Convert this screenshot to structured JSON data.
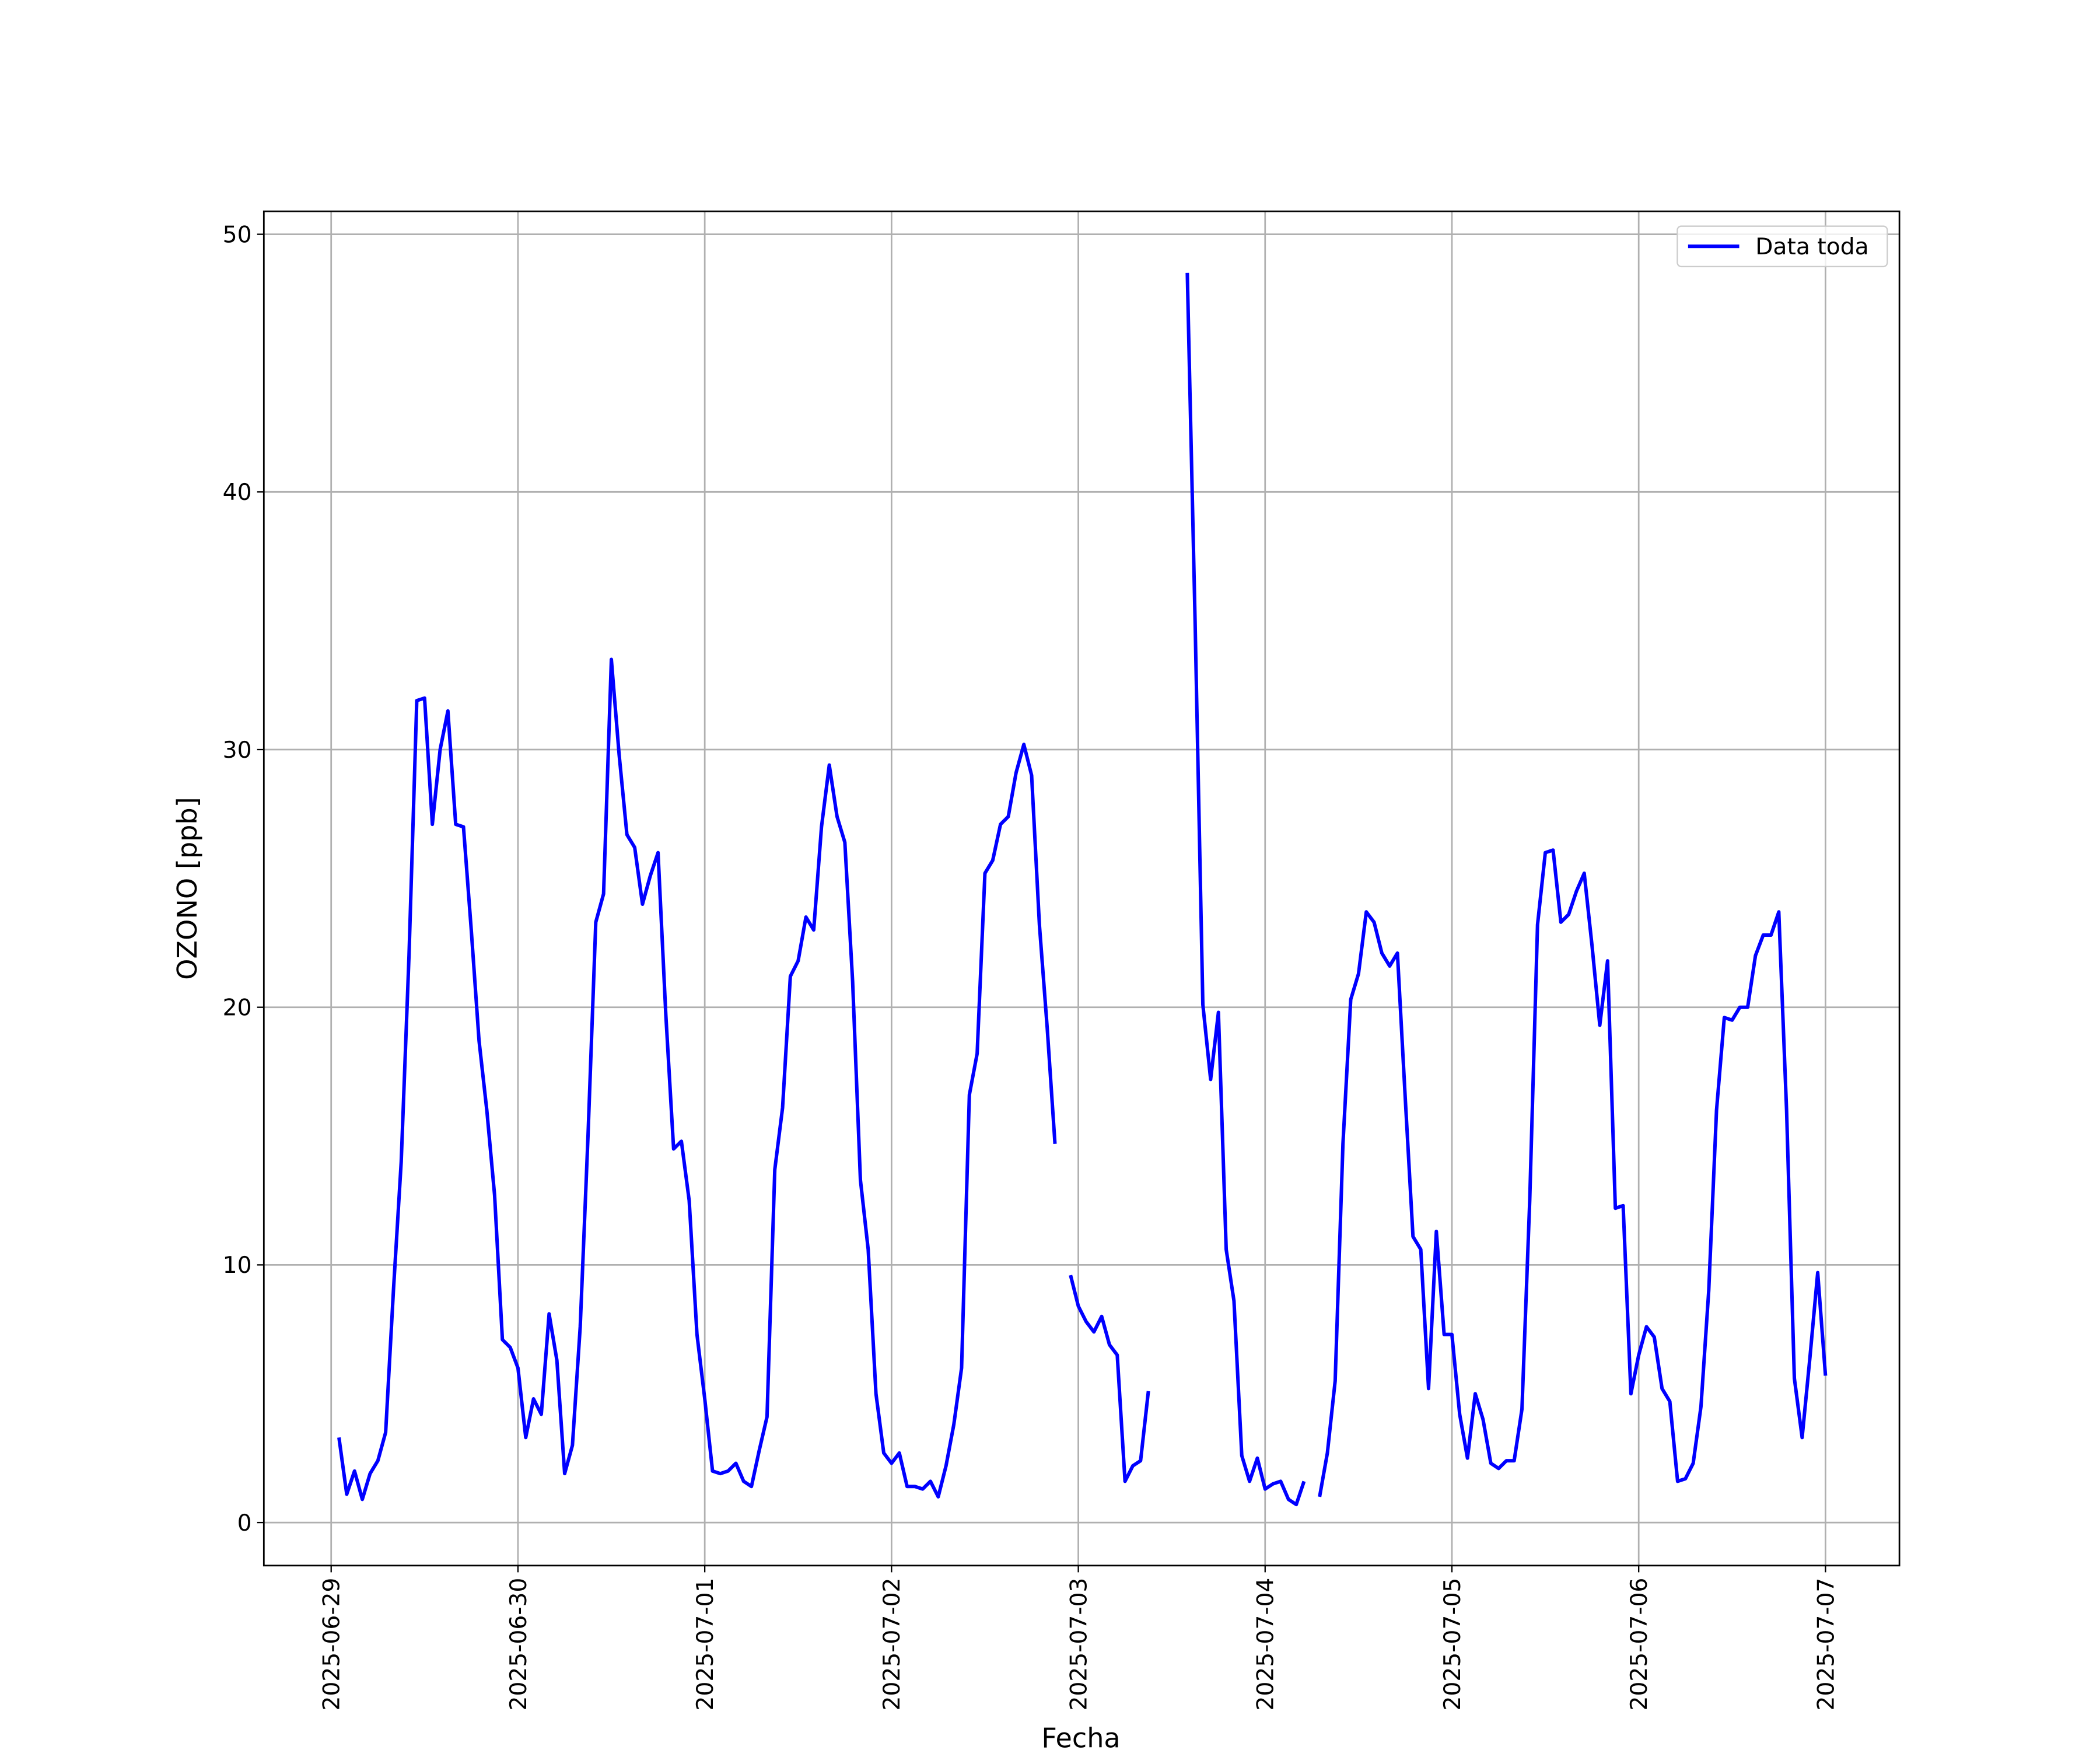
{
  "chart_data": {
    "type": "line",
    "xlabel": "Fecha",
    "ylabel": "OZONO [ppb]",
    "x": [
      "2025-06-29T01:00",
      "2025-06-29T02:00",
      "2025-06-29T03:00",
      "2025-06-29T04:00",
      "2025-06-29T05:00",
      "2025-06-29T06:00",
      "2025-06-29T07:00",
      "2025-06-29T08:00",
      "2025-06-29T09:00",
      "2025-06-29T10:00",
      "2025-06-29T11:00",
      "2025-06-29T12:00",
      "2025-06-29T13:00",
      "2025-06-29T14:00",
      "2025-06-29T15:00",
      "2025-06-29T16:00",
      "2025-06-29T17:00",
      "2025-06-29T18:00",
      "2025-06-29T19:00",
      "2025-06-29T20:00",
      "2025-06-29T21:00",
      "2025-06-29T22:00",
      "2025-06-29T23:00",
      "2025-06-30T00:00",
      "2025-06-30T01:00",
      "2025-06-30T02:00",
      "2025-06-30T03:00",
      "2025-06-30T04:00",
      "2025-06-30T05:00",
      "2025-06-30T06:00",
      "2025-06-30T07:00",
      "2025-06-30T08:00",
      "2025-06-30T09:00",
      "2025-06-30T10:00",
      "2025-06-30T11:00",
      "2025-06-30T12:00",
      "2025-06-30T13:00",
      "2025-06-30T14:00",
      "2025-06-30T15:00",
      "2025-06-30T16:00",
      "2025-06-30T17:00",
      "2025-06-30T18:00",
      "2025-06-30T19:00",
      "2025-06-30T20:00",
      "2025-06-30T21:00",
      "2025-06-30T22:00",
      "2025-06-30T23:00",
      "2025-07-01T00:00",
      "2025-07-01T01:00",
      "2025-07-01T02:00",
      "2025-07-01T03:00",
      "2025-07-01T04:00",
      "2025-07-01T05:00",
      "2025-07-01T06:00",
      "2025-07-01T07:00",
      "2025-07-01T08:00",
      "2025-07-01T09:00",
      "2025-07-01T10:00",
      "2025-07-01T11:00",
      "2025-07-01T12:00",
      "2025-07-01T13:00",
      "2025-07-01T14:00",
      "2025-07-01T15:00",
      "2025-07-01T16:00",
      "2025-07-01T17:00",
      "2025-07-01T18:00",
      "2025-07-01T19:00",
      "2025-07-01T20:00",
      "2025-07-01T21:00",
      "2025-07-01T22:00",
      "2025-07-01T23:00",
      "2025-07-02T00:00",
      "2025-07-02T01:00",
      "2025-07-02T02:00",
      "2025-07-02T03:00",
      "2025-07-02T04:00",
      "2025-07-02T05:00",
      "2025-07-02T06:00",
      "2025-07-02T07:00",
      "2025-07-02T08:00",
      "2025-07-02T09:00",
      "2025-07-02T10:00",
      "2025-07-02T11:00",
      "2025-07-02T12:00",
      "2025-07-02T13:00",
      "2025-07-02T14:00",
      "2025-07-02T15:00",
      "2025-07-02T16:00",
      "2025-07-02T17:00",
      "2025-07-02T18:00",
      "2025-07-02T19:00",
      "2025-07-02T20:00",
      "2025-07-02T21:00",
      "2025-07-02T22:00",
      "2025-07-02T23:00",
      "2025-07-03T00:00",
      "2025-07-03T01:00",
      "2025-07-03T02:00",
      "2025-07-03T03:00",
      "2025-07-03T04:00",
      "2025-07-03T05:00",
      "2025-07-03T06:00",
      "2025-07-03T07:00",
      "2025-07-03T08:00",
      "2025-07-03T09:00",
      "2025-07-03T10:00",
      "2025-07-03T11:00",
      "2025-07-03T12:00",
      "2025-07-03T13:00",
      "2025-07-03T14:00",
      "2025-07-03T15:00",
      "2025-07-03T16:00",
      "2025-07-03T17:00",
      "2025-07-03T18:00",
      "2025-07-03T19:00",
      "2025-07-03T20:00",
      "2025-07-03T21:00",
      "2025-07-03T22:00",
      "2025-07-03T23:00",
      "2025-07-04T00:00",
      "2025-07-04T01:00",
      "2025-07-04T02:00",
      "2025-07-04T03:00",
      "2025-07-04T04:00",
      "2025-07-04T05:00",
      "2025-07-04T06:00",
      "2025-07-04T07:00",
      "2025-07-04T08:00",
      "2025-07-04T09:00",
      "2025-07-04T10:00",
      "2025-07-04T11:00",
      "2025-07-04T12:00",
      "2025-07-04T13:00",
      "2025-07-04T14:00",
      "2025-07-04T15:00",
      "2025-07-04T16:00",
      "2025-07-04T17:00",
      "2025-07-04T18:00",
      "2025-07-04T19:00",
      "2025-07-04T20:00",
      "2025-07-04T21:00",
      "2025-07-04T22:00",
      "2025-07-04T23:00",
      "2025-07-05T00:00",
      "2025-07-05T01:00",
      "2025-07-05T02:00",
      "2025-07-05T03:00",
      "2025-07-05T04:00",
      "2025-07-05T05:00",
      "2025-07-05T06:00",
      "2025-07-05T07:00",
      "2025-07-05T08:00",
      "2025-07-05T09:00",
      "2025-07-05T10:00",
      "2025-07-05T11:00",
      "2025-07-05T12:00",
      "2025-07-05T13:00",
      "2025-07-05T14:00",
      "2025-07-05T15:00",
      "2025-07-05T16:00",
      "2025-07-05T17:00",
      "2025-07-05T18:00",
      "2025-07-05T19:00",
      "2025-07-05T20:00",
      "2025-07-05T21:00",
      "2025-07-05T22:00",
      "2025-07-05T23:00",
      "2025-07-06T00:00",
      "2025-07-06T01:00",
      "2025-07-06T02:00",
      "2025-07-06T03:00",
      "2025-07-06T04:00",
      "2025-07-06T05:00",
      "2025-07-06T06:00",
      "2025-07-06T07:00",
      "2025-07-06T08:00",
      "2025-07-06T09:00",
      "2025-07-06T10:00",
      "2025-07-06T11:00",
      "2025-07-06T12:00",
      "2025-07-06T13:00",
      "2025-07-06T14:00",
      "2025-07-06T15:00",
      "2025-07-06T16:00",
      "2025-07-06T17:00",
      "2025-07-06T18:00",
      "2025-07-06T19:00",
      "2025-07-06T20:00",
      "2025-07-06T21:00",
      "2025-07-06T22:00",
      "2025-07-06T23:00",
      "2025-07-07T00:00"
    ],
    "series": [
      {
        "name": "Data toda",
        "color": "#0000ff",
        "values": [
          3.3,
          1.1,
          2.0,
          0.9,
          1.9,
          2.4,
          3.5,
          9,
          14,
          22,
          31.9,
          32.0,
          27.1,
          30.0,
          31.5,
          27.1,
          27.0,
          23,
          18.7,
          16,
          12.7,
          7.1,
          6.8,
          6.0,
          3.3,
          4.8,
          4.2,
          8.1,
          6.3,
          1.9,
          3.0,
          7.6,
          15,
          23.3,
          24.4,
          33.5,
          29.8,
          26.7,
          26.2,
          24.0,
          25.1,
          26.0,
          19.7,
          14.5,
          14.8,
          12.5,
          7.3,
          4.8,
          2.0,
          1.9,
          2.0,
          2.3,
          1.6,
          1.4,
          2.8,
          4.1,
          13.7,
          16.1,
          21.2,
          21.8,
          23.5,
          23.0,
          27.0,
          29.4,
          27.4,
          26.4,
          21,
          13.3,
          10.6,
          5.0,
          2.7,
          2.3,
          2.7,
          1.4,
          1.4,
          1.3,
          1.6,
          1.0,
          2.2,
          3.8,
          6.0,
          16.6,
          18.2,
          25.2,
          25.7,
          27.1,
          27.4,
          29.1,
          30.2,
          29.0,
          23.2,
          19.2,
          14.7,
          null,
          9.6,
          8.4,
          7.8,
          7.4,
          8.0,
          6.9,
          6.5,
          1.6,
          2.2,
          2.4,
          5.1,
          null,
          null,
          null,
          null,
          48.5,
          35,
          20.1,
          17.2,
          19.8,
          10.6,
          8.6,
          2.6,
          1.6,
          2.5,
          1.3,
          1.5,
          1.6,
          0.9,
          0.7,
          1.6,
          null,
          1.0,
          2.7,
          5.5,
          14.7,
          20.3,
          21.3,
          23.7,
          23.3,
          22.1,
          21.6,
          22.1,
          16.5,
          11.1,
          10.6,
          5.2,
          11.3,
          7.3,
          7.3,
          4.2,
          2.5,
          5.0,
          4.0,
          2.3,
          2.1,
          2.4,
          2.4,
          4.4,
          12.5,
          23.2,
          26.0,
          26.1,
          23.3,
          23.6,
          24.5,
          25.2,
          22.4,
          19.3,
          21.8,
          12.2,
          12.3,
          5.0,
          6.5,
          7.6,
          7.2,
          5.2,
          4.7,
          1.6,
          1.7,
          2.3,
          4.5,
          9,
          16,
          19.6,
          19.5,
          20.0,
          20.0,
          22.0,
          22.8,
          22.8,
          23.7,
          16,
          5.6,
          3.3,
          6.4,
          9.7,
          5.7
        ]
      }
    ],
    "xlim": [
      "2025-06-28T15:21",
      "2025-07-07T09:30"
    ],
    "xticks": [
      "2025-06-29",
      "2025-06-30",
      "2025-07-01",
      "2025-07-02",
      "2025-07-03",
      "2025-07-04",
      "2025-07-05",
      "2025-07-06",
      "2025-07-07"
    ],
    "ylim": [
      -1.67,
      50.89
    ],
    "yticks": [
      0,
      10,
      20,
      30,
      40,
      50
    ],
    "grid": true,
    "legend": "upper right"
  }
}
